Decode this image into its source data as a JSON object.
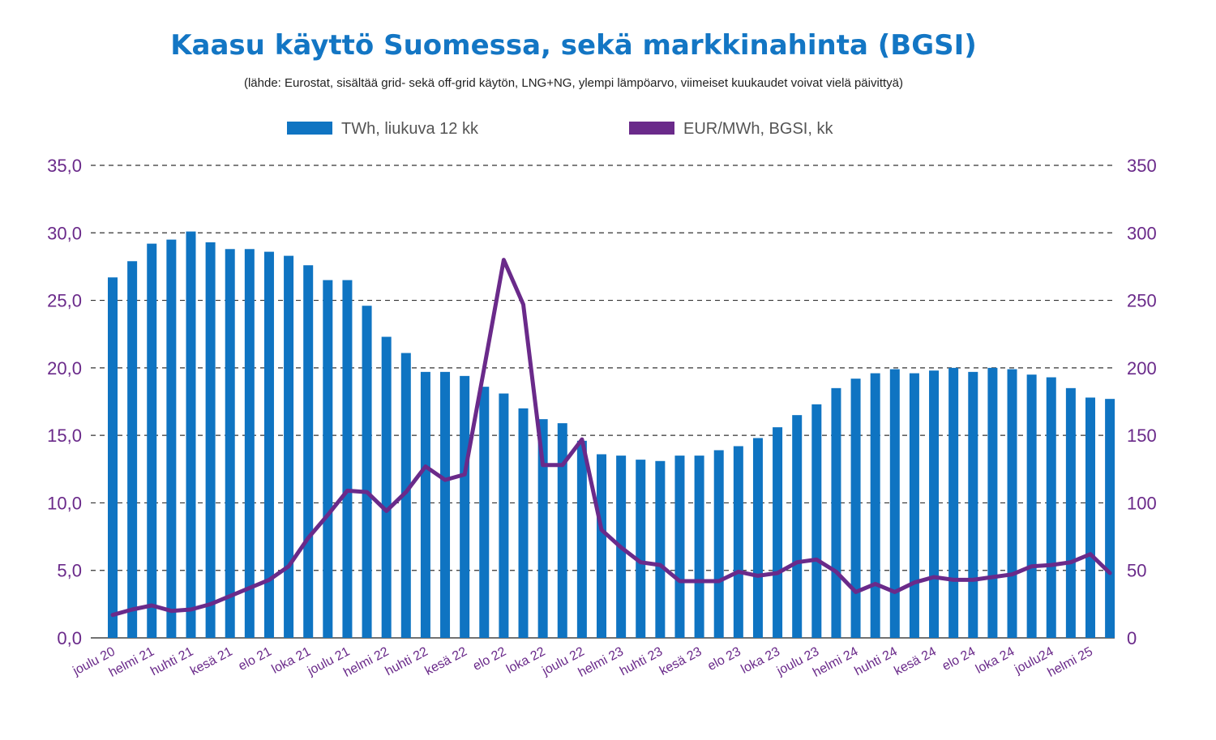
{
  "title": "Kaasu käyttö Suomessa, sekä markkinahinta (BGSI)",
  "subtitle": "(lähde: Eurostat, sisältää grid- sekä off-grid käytön, LNG+NG, ylempi lämpöarvo, viimeiset kuukaudet voivat vielä päivittyä)",
  "colors": {
    "title": "#1376c4",
    "bars": "#0f74c2",
    "line": "#6a2a8a",
    "axis_text": "#6a2a8a",
    "grid": "#333333"
  },
  "chart_data": {
    "type": "bar",
    "combo": "bar+line, dual y-axis",
    "title": "Kaasu käyttö Suomessa, sekä markkinahinta (BGSI)",
    "subtitle": "(lähde: Eurostat, sisältää grid- sekä off-grid käytön, LNG+NG, ylempi lämpöarvo, viimeiset kuukaudet voivat vielä päivittyä)",
    "legend_position": "top-center",
    "grid": "horizontal dashed",
    "x_tick_labels": [
      "joulu 20",
      "helmi 21",
      "huhti 21",
      "kesä 21",
      "elo 21",
      "loka 21",
      "joulu 21",
      "helmi 22",
      "huhti 22",
      "kesä 22",
      "elo 22",
      "loka 22",
      "joulu 22",
      "helmi 23",
      "huhti 23",
      "kesä 23",
      "elo 23",
      "loka 23",
      "joulu 23",
      "helmi 24",
      "huhti 24",
      "kesä 24",
      "elo 24",
      "loka 24",
      "joulu24",
      "helmi 25"
    ],
    "left_axis": {
      "ylim": [
        0,
        35
      ],
      "ticks": [
        "0,0",
        "5,0",
        "10,0",
        "15,0",
        "20,0",
        "25,0",
        "30,0",
        "35,0"
      ]
    },
    "right_axis": {
      "ylim": [
        0,
        350
      ],
      "ticks": [
        "0",
        "50",
        "100",
        "150",
        "200",
        "250",
        "300",
        "350"
      ]
    },
    "series": [
      {
        "name": "TWh, liukuva 12 kk",
        "type": "bar",
        "axis": "left",
        "values": [
          26.7,
          27.9,
          29.2,
          29.5,
          30.1,
          29.3,
          28.8,
          28.8,
          28.6,
          28.3,
          27.6,
          26.5,
          26.5,
          24.6,
          22.3,
          21.1,
          19.7,
          19.7,
          19.4,
          18.6,
          18.1,
          17.0,
          16.2,
          15.9,
          14.6,
          13.6,
          13.5,
          13.2,
          13.1,
          13.5,
          13.5,
          13.9,
          14.2,
          14.8,
          15.6,
          16.5,
          17.3,
          18.5,
          19.2,
          19.6,
          19.9,
          19.6,
          19.8,
          20.0,
          19.7,
          20.0,
          19.9,
          19.5,
          19.3,
          18.5,
          17.8,
          17.7
        ]
      },
      {
        "name": "EUR/MWh, BGSI, kk",
        "type": "line",
        "axis": "right",
        "values": [
          17,
          21,
          24,
          20,
          21,
          25,
          31,
          37,
          43,
          53,
          74,
          91,
          109,
          108,
          94,
          108,
          127,
          117,
          121,
          200,
          280,
          247,
          128,
          128,
          147,
          80,
          67,
          56,
          54,
          42,
          42,
          42,
          49,
          46,
          48,
          56,
          58,
          49,
          34,
          40,
          34,
          41,
          45,
          43,
          43,
          45,
          47,
          53,
          54,
          56,
          62,
          48
        ]
      }
    ]
  }
}
